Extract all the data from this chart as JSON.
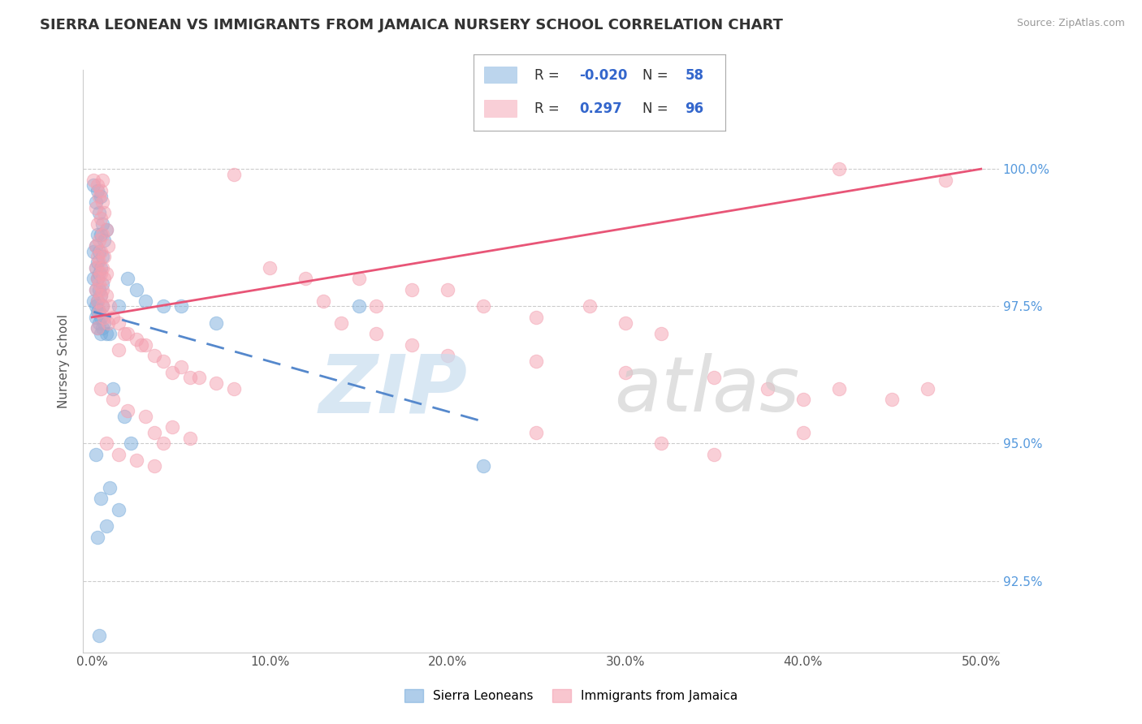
{
  "title": "SIERRA LEONEAN VS IMMIGRANTS FROM JAMAICA NURSERY SCHOOL CORRELATION CHART",
  "source": "Source: ZipAtlas.com",
  "ylabel": "Nursery School",
  "xlim": [
    -0.5,
    51.0
  ],
  "ylim": [
    91.2,
    101.8
  ],
  "yticks": [
    92.5,
    95.0,
    97.5,
    100.0
  ],
  "ytick_labels": [
    "92.5%",
    "95.0%",
    "97.5%",
    "100.0%"
  ],
  "xticks": [
    0.0,
    10.0,
    20.0,
    30.0,
    40.0,
    50.0
  ],
  "xtick_labels": [
    "0.0%",
    "10.0%",
    "20.0%",
    "30.0%",
    "40.0%",
    "50.0%"
  ],
  "blue_R": -0.02,
  "blue_N": 58,
  "pink_R": 0.297,
  "pink_N": 96,
  "blue_color": "#7AADDC",
  "pink_color": "#F4A0B0",
  "blue_label": "Sierra Leoneans",
  "pink_label": "Immigrants from Jamaica",
  "background_color": "#ffffff",
  "blue_scatter": [
    [
      0.1,
      99.7
    ],
    [
      0.3,
      99.6
    ],
    [
      0.5,
      99.5
    ],
    [
      0.2,
      99.4
    ],
    [
      0.4,
      99.2
    ],
    [
      0.6,
      99.0
    ],
    [
      0.8,
      98.9
    ],
    [
      0.3,
      98.8
    ],
    [
      0.5,
      98.8
    ],
    [
      0.7,
      98.7
    ],
    [
      0.2,
      98.6
    ],
    [
      0.4,
      98.5
    ],
    [
      0.1,
      98.5
    ],
    [
      0.6,
      98.4
    ],
    [
      0.3,
      98.3
    ],
    [
      0.5,
      98.2
    ],
    [
      0.2,
      98.2
    ],
    [
      0.4,
      98.1
    ],
    [
      0.1,
      98.0
    ],
    [
      0.3,
      98.0
    ],
    [
      0.6,
      97.9
    ],
    [
      0.2,
      97.8
    ],
    [
      0.4,
      97.8
    ],
    [
      0.5,
      97.7
    ],
    [
      0.1,
      97.6
    ],
    [
      0.3,
      97.6
    ],
    [
      0.2,
      97.5
    ],
    [
      0.6,
      97.5
    ],
    [
      0.4,
      97.4
    ],
    [
      0.3,
      97.4
    ],
    [
      0.5,
      97.3
    ],
    [
      0.2,
      97.3
    ],
    [
      0.7,
      97.2
    ],
    [
      0.4,
      97.2
    ],
    [
      0.3,
      97.1
    ],
    [
      0.6,
      97.1
    ],
    [
      0.5,
      97.0
    ],
    [
      0.8,
      97.0
    ],
    [
      1.0,
      97.0
    ],
    [
      1.5,
      97.5
    ],
    [
      2.0,
      98.0
    ],
    [
      2.5,
      97.8
    ],
    [
      3.0,
      97.6
    ],
    [
      4.0,
      97.5
    ],
    [
      1.2,
      96.0
    ],
    [
      1.8,
      95.5
    ],
    [
      2.2,
      95.0
    ],
    [
      1.0,
      94.2
    ],
    [
      0.5,
      94.0
    ],
    [
      1.5,
      93.8
    ],
    [
      0.8,
      93.5
    ],
    [
      0.3,
      93.3
    ],
    [
      0.2,
      94.8
    ],
    [
      5.0,
      97.5
    ],
    [
      7.0,
      97.2
    ],
    [
      15.0,
      97.5
    ],
    [
      22.0,
      94.6
    ],
    [
      0.4,
      91.5
    ]
  ],
  "pink_scatter": [
    [
      0.1,
      99.8
    ],
    [
      0.3,
      99.7
    ],
    [
      0.5,
      99.6
    ],
    [
      0.4,
      99.5
    ],
    [
      0.6,
      99.4
    ],
    [
      0.2,
      99.3
    ],
    [
      0.7,
      99.2
    ],
    [
      0.5,
      99.1
    ],
    [
      0.3,
      99.0
    ],
    [
      0.8,
      98.9
    ],
    [
      0.6,
      98.8
    ],
    [
      0.4,
      98.7
    ],
    [
      0.2,
      98.6
    ],
    [
      0.9,
      98.6
    ],
    [
      0.5,
      98.5
    ],
    [
      0.3,
      98.4
    ],
    [
      0.7,
      98.4
    ],
    [
      0.4,
      98.3
    ],
    [
      0.6,
      98.2
    ],
    [
      0.2,
      98.2
    ],
    [
      0.8,
      98.1
    ],
    [
      0.5,
      98.1
    ],
    [
      0.3,
      98.0
    ],
    [
      0.7,
      98.0
    ],
    [
      0.4,
      97.9
    ],
    [
      0.6,
      97.8
    ],
    [
      0.2,
      97.8
    ],
    [
      0.5,
      97.7
    ],
    [
      0.8,
      97.7
    ],
    [
      0.3,
      97.6
    ],
    [
      1.0,
      97.5
    ],
    [
      0.6,
      97.5
    ],
    [
      0.4,
      97.4
    ],
    [
      0.7,
      97.3
    ],
    [
      1.2,
      97.3
    ],
    [
      0.9,
      97.2
    ],
    [
      1.5,
      97.2
    ],
    [
      0.3,
      97.1
    ],
    [
      1.8,
      97.0
    ],
    [
      2.0,
      97.0
    ],
    [
      2.5,
      96.9
    ],
    [
      3.0,
      96.8
    ],
    [
      2.8,
      96.8
    ],
    [
      1.5,
      96.7
    ],
    [
      3.5,
      96.6
    ],
    [
      4.0,
      96.5
    ],
    [
      5.0,
      96.4
    ],
    [
      4.5,
      96.3
    ],
    [
      6.0,
      96.2
    ],
    [
      5.5,
      96.2
    ],
    [
      7.0,
      96.1
    ],
    [
      8.0,
      96.0
    ],
    [
      0.5,
      96.0
    ],
    [
      1.2,
      95.8
    ],
    [
      2.0,
      95.6
    ],
    [
      3.0,
      95.5
    ],
    [
      4.5,
      95.3
    ],
    [
      3.5,
      95.2
    ],
    [
      5.5,
      95.1
    ],
    [
      4.0,
      95.0
    ],
    [
      0.8,
      95.0
    ],
    [
      1.5,
      94.8
    ],
    [
      2.5,
      94.7
    ],
    [
      3.5,
      94.6
    ],
    [
      10.0,
      98.2
    ],
    [
      12.0,
      98.0
    ],
    [
      15.0,
      98.0
    ],
    [
      18.0,
      97.8
    ],
    [
      13.0,
      97.6
    ],
    [
      16.0,
      97.5
    ],
    [
      20.0,
      97.8
    ],
    [
      22.0,
      97.5
    ],
    [
      25.0,
      97.3
    ],
    [
      28.0,
      97.5
    ],
    [
      30.0,
      97.2
    ],
    [
      32.0,
      97.0
    ],
    [
      14.0,
      97.2
    ],
    [
      16.0,
      97.0
    ],
    [
      18.0,
      96.8
    ],
    [
      20.0,
      96.6
    ],
    [
      25.0,
      96.5
    ],
    [
      30.0,
      96.3
    ],
    [
      35.0,
      96.2
    ],
    [
      38.0,
      96.0
    ],
    [
      40.0,
      95.8
    ],
    [
      42.0,
      96.0
    ],
    [
      45.0,
      95.8
    ],
    [
      47.0,
      96.0
    ],
    [
      25.0,
      95.2
    ],
    [
      32.0,
      95.0
    ],
    [
      35.0,
      94.8
    ],
    [
      40.0,
      95.2
    ],
    [
      0.6,
      99.8
    ],
    [
      8.0,
      99.9
    ],
    [
      42.0,
      100.0
    ],
    [
      48.0,
      99.8
    ]
  ]
}
